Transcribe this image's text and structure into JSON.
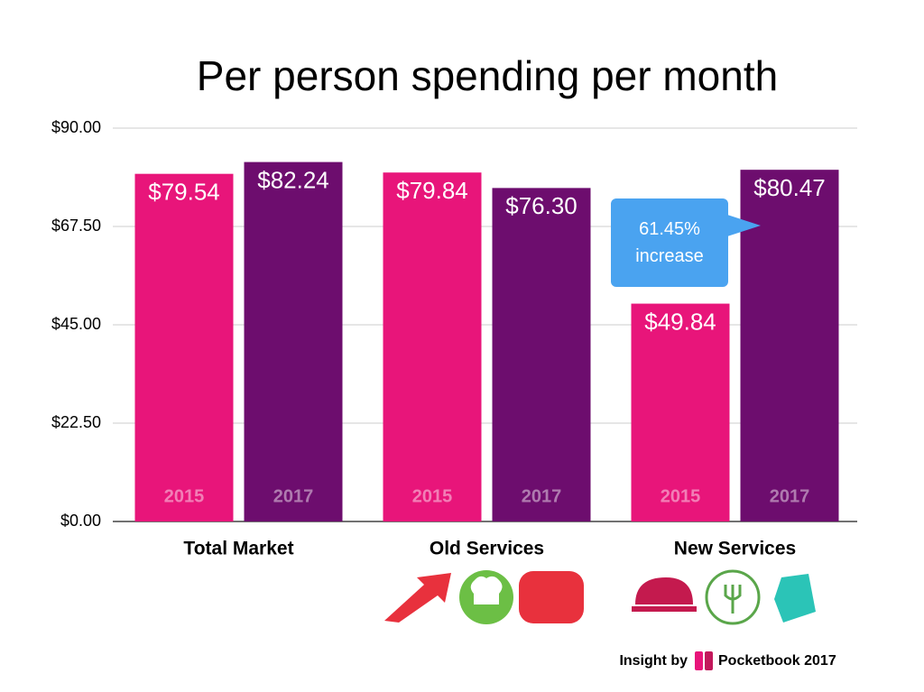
{
  "chart_data": {
    "type": "bar",
    "title": "Per person spending per month",
    "categories": [
      "Total Market",
      "Old Services",
      "New Services"
    ],
    "series": [
      {
        "name": "2015",
        "color": "#e8157a",
        "values": [
          79.54,
          79.84,
          49.84
        ],
        "value_labels": [
          "$79.54",
          "$79.84",
          "$49.84"
        ]
      },
      {
        "name": "2017",
        "color": "#6d0d6e",
        "values": [
          82.24,
          76.3,
          80.47
        ],
        "value_labels": [
          "$82.24",
          "$76.30",
          "$80.47"
        ]
      }
    ],
    "ylim": [
      0,
      90
    ],
    "yticks": [
      {
        "value": 0,
        "label": "$0.00"
      },
      {
        "value": 22.5,
        "label": "$22.50"
      },
      {
        "value": 45,
        "label": "$45.00"
      },
      {
        "value": 67.5,
        "label": "$67.50"
      },
      {
        "value": 90,
        "label": "$90.00"
      }
    ],
    "grid": true,
    "annotation": "61.45% increase",
    "footer": {
      "prefix": "Insight by",
      "brand": "Pocketbook 2017"
    }
  }
}
